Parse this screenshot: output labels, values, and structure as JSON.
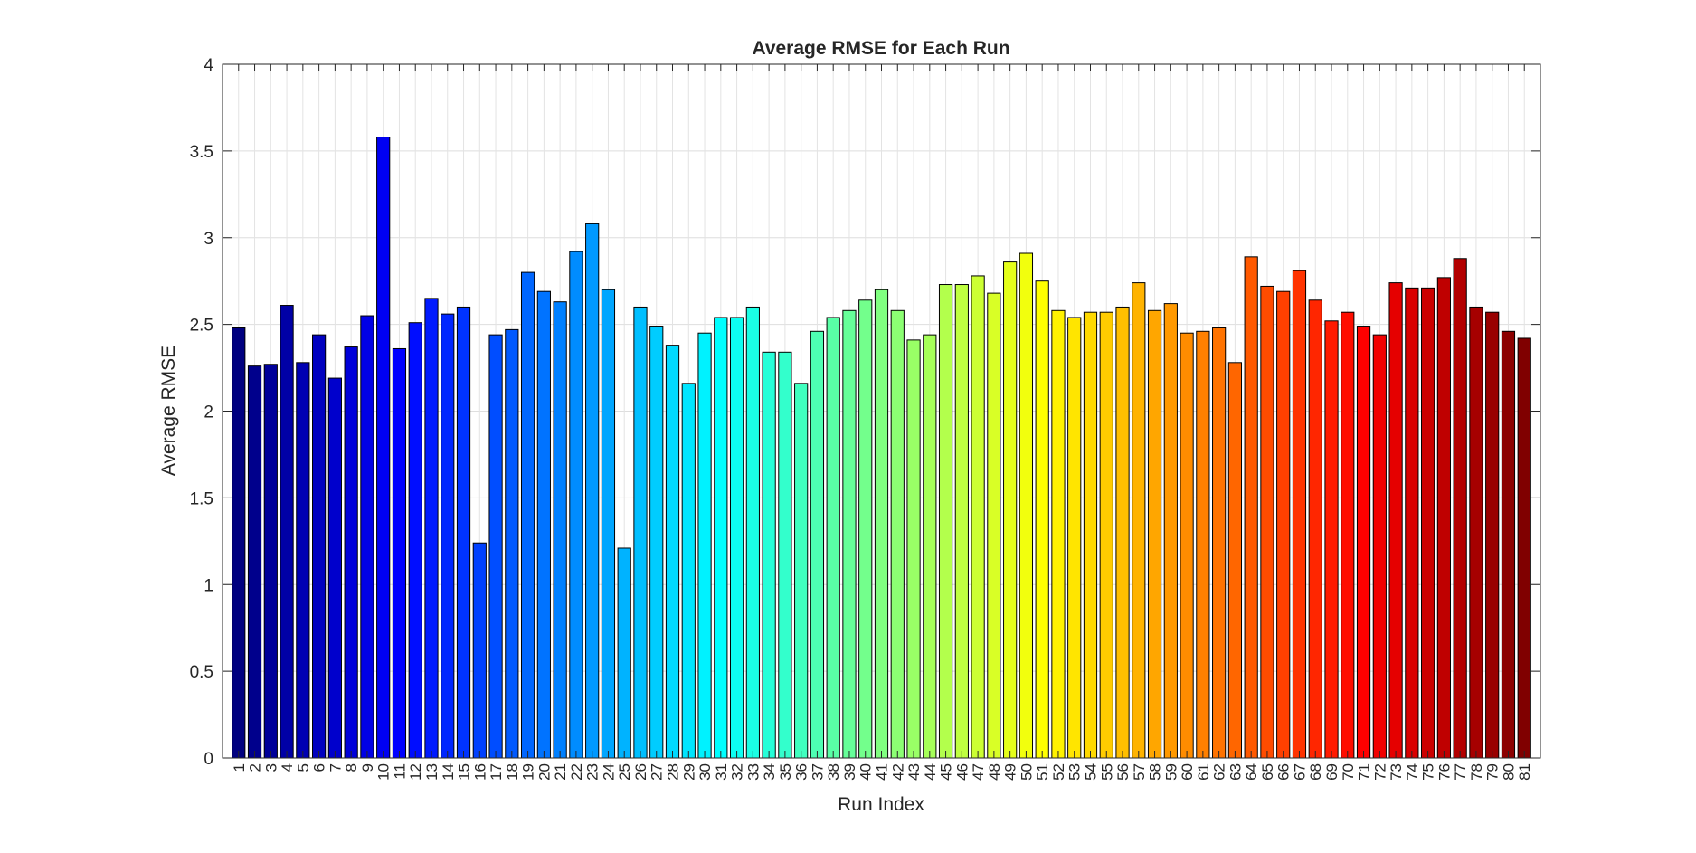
{
  "chart_data": {
    "type": "bar",
    "title": "Average RMSE for Each Run",
    "xlabel": "Run Index",
    "ylabel": "Average RMSE",
    "ylim": [
      0,
      4
    ],
    "yticks": [
      "0",
      "0.5",
      "1",
      "1.5",
      "2",
      "2.5",
      "3",
      "3.5",
      "4"
    ],
    "grid": true,
    "colormap": "jet",
    "categories": [
      "1",
      "2",
      "3",
      "4",
      "5",
      "6",
      "7",
      "8",
      "9",
      "10",
      "11",
      "12",
      "13",
      "14",
      "15",
      "16",
      "17",
      "18",
      "19",
      "20",
      "21",
      "22",
      "23",
      "24",
      "25",
      "26",
      "27",
      "28",
      "29",
      "30",
      "31",
      "32",
      "33",
      "34",
      "35",
      "36",
      "37",
      "38",
      "39",
      "40",
      "41",
      "42",
      "43",
      "44",
      "45",
      "46",
      "47",
      "48",
      "49",
      "50",
      "51",
      "52",
      "53",
      "54",
      "55",
      "56",
      "57",
      "58",
      "59",
      "60",
      "61",
      "62",
      "63",
      "64",
      "65",
      "66",
      "67",
      "68",
      "69",
      "70",
      "71",
      "72",
      "73",
      "74",
      "75",
      "76",
      "77",
      "78",
      "79",
      "80",
      "81"
    ],
    "values": [
      2.48,
      2.26,
      2.27,
      2.61,
      2.28,
      2.44,
      2.19,
      2.37,
      2.55,
      3.58,
      2.36,
      2.51,
      2.65,
      2.56,
      2.6,
      1.24,
      2.44,
      2.47,
      2.8,
      2.69,
      2.63,
      2.92,
      3.08,
      2.7,
      1.21,
      2.6,
      2.49,
      2.38,
      2.16,
      2.45,
      2.54,
      2.54,
      2.6,
      2.34,
      2.34,
      2.16,
      2.46,
      2.54,
      2.58,
      2.64,
      2.7,
      2.58,
      2.41,
      2.44,
      2.73,
      2.73,
      2.78,
      2.68,
      2.86,
      2.91,
      2.75,
      2.58,
      2.54,
      2.57,
      2.57,
      2.6,
      2.74,
      2.58,
      2.62,
      2.45,
      2.46,
      2.48,
      2.28,
      2.89,
      2.72,
      2.69,
      2.81,
      2.64,
      2.52,
      2.57,
      2.49,
      2.44,
      2.74,
      2.71,
      2.71,
      2.77,
      2.88,
      2.6,
      2.57,
      2.46,
      2.42
    ]
  }
}
